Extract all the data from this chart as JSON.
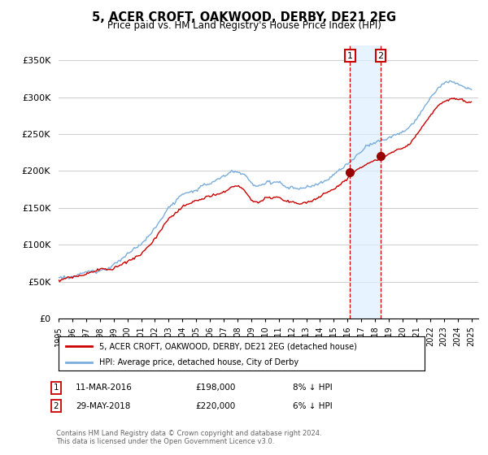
{
  "title": "5, ACER CROFT, OAKWOOD, DERBY, DE21 2EG",
  "subtitle": "Price paid vs. HM Land Registry's House Price Index (HPI)",
  "ylabel_ticks": [
    "£0",
    "£50K",
    "£100K",
    "£150K",
    "£200K",
    "£250K",
    "£300K",
    "£350K"
  ],
  "ytick_values": [
    0,
    50000,
    100000,
    150000,
    200000,
    250000,
    300000,
    350000
  ],
  "ylim": [
    0,
    370000
  ],
  "xlim_start": 1995.0,
  "xlim_end": 2025.5,
  "hpi_color": "#7aaddb",
  "price_color": "#cc0000",
  "marker1_year": 2016.19,
  "marker1_price": 198000,
  "marker1_label": "1",
  "marker1_date": "11-MAR-2016",
  "marker1_amount": "£198,000",
  "marker1_pct": "8% ↓ HPI",
  "marker2_year": 2018.41,
  "marker2_price": 220000,
  "marker2_label": "2",
  "marker2_date": "29-MAY-2018",
  "marker2_amount": "£220,000",
  "marker2_pct": "6% ↓ HPI",
  "legend_line1": "5, ACER CROFT, OAKWOOD, DERBY, DE21 2EG (detached house)",
  "legend_line2": "HPI: Average price, detached house, City of Derby",
  "footer": "Contains HM Land Registry data © Crown copyright and database right 2024.\nThis data is licensed under the Open Government Licence v3.0.",
  "grid_color": "#cccccc",
  "shade_color": "#ddeeff",
  "background_color": "#ffffff"
}
